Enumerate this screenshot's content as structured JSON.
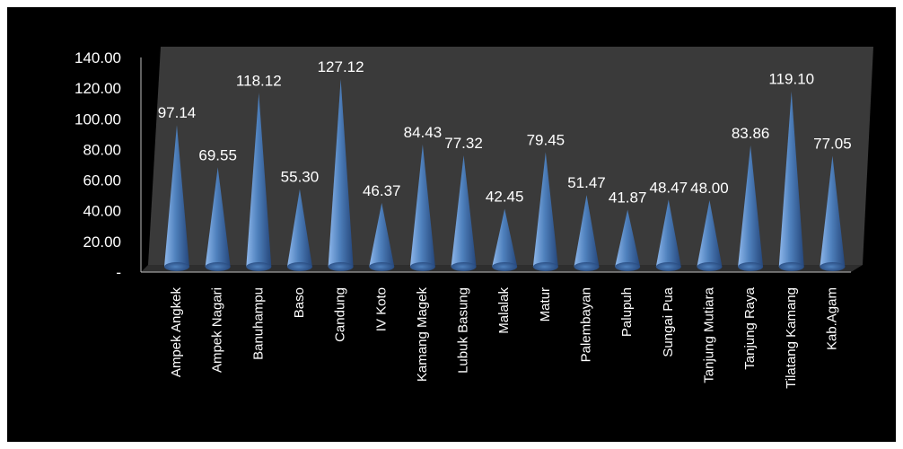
{
  "chart_data": {
    "type": "bar",
    "style": "cone-3d",
    "title": "",
    "xlabel": "",
    "ylabel": "",
    "ylim": [
      0,
      140
    ],
    "grid": false,
    "legend": "none",
    "categories": [
      "Ampek Angkek",
      "Ampek Nagari",
      "Banuhampu",
      "Baso",
      "Candung",
      "IV Koto",
      "Kamang Magek",
      "Lubuk Basung",
      "Malalak",
      "Matur",
      "Palembayan",
      "Palupuh",
      "Sungai Pua",
      "Tanjung Mutiara",
      "Tanjung Raya",
      "Tilatang Kamang",
      "Kab.Agam"
    ],
    "values": [
      97.14,
      69.55,
      118.12,
      55.3,
      127.12,
      46.37,
      84.43,
      77.32,
      42.45,
      79.45,
      51.47,
      41.87,
      48.47,
      48.0,
      83.86,
      119.1,
      77.05
    ],
    "data_labels": [
      "97.14",
      "69.55",
      "118.12",
      "55.30",
      "127.12",
      "46.37",
      "84.43",
      "77.32",
      "42.45",
      "79.45",
      "51.47",
      "41.87",
      "48.47",
      "48.00",
      "83.86",
      "119.10",
      "77.05"
    ],
    "y_tick_labels": [
      "-",
      "20.00",
      "40.00",
      "60.00",
      "80.00",
      "100.00",
      "120.00",
      "140.00"
    ],
    "y_tick_values": [
      0,
      20,
      40,
      60,
      80,
      100,
      120,
      140
    ],
    "colors": {
      "background": "#000000",
      "wall": "#3a3a3a",
      "floor": "#2e2e2e",
      "cone_light": "#8fb8ec",
      "cone_mid": "#4f81bd",
      "cone_dark": "#25467a",
      "text": "#ffffff"
    }
  }
}
